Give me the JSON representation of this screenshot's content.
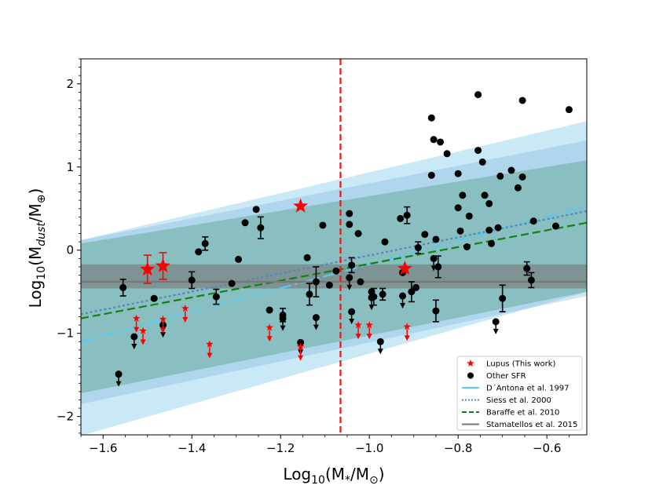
{
  "chart_data": {
    "type": "scatter",
    "xlabel": "Log10(M*/M☉)",
    "ylabel": "Log10(Mdust/M⊕)",
    "xlim": [
      -1.65,
      -0.51
    ],
    "ylim": [
      -2.22,
      2.3
    ],
    "xticks": [
      -1.6,
      -1.4,
      -1.2,
      -1.0,
      -0.8,
      -0.6
    ],
    "xtick_labels": [
      "−1.6",
      "−1.4",
      "−1.2",
      "−1.0",
      "−0.8",
      "−0.6"
    ],
    "yticks": [
      -2,
      -1,
      0,
      1,
      2
    ],
    "ytick_labels": [
      "−2",
      "−1",
      "0",
      "1",
      "2"
    ],
    "vline_x": -1.065,
    "colors": {
      "lupus": "#ff0000",
      "other": "#000000",
      "dantona": "#5bc8f0",
      "siess": "#5b86b8",
      "baraffe": "#128212",
      "stamatellos": "#777777",
      "vline": "#e0201b"
    },
    "bands": [
      {
        "name": "dantona-outer",
        "x": [
          -1.65,
          -0.51
        ],
        "lower": [
          -2.23,
          -0.5
        ],
        "upper": [
          0.12,
          1.55
        ],
        "color": "#87ceeb",
        "opacity": 0.45
      },
      {
        "name": "siess-band",
        "x": [
          -1.65,
          -0.51
        ],
        "lower": [
          -1.85,
          -0.55
        ],
        "upper": [
          0.12,
          1.32
        ],
        "color": "#7fb5dc",
        "opacity": 0.35
      },
      {
        "name": "baraffe-band",
        "x": [
          -1.65,
          -0.51
        ],
        "lower": [
          -1.72,
          -0.5
        ],
        "upper": [
          0.08,
          1.08
        ],
        "color": "#5aa58a",
        "opacity": 0.45
      },
      {
        "name": "stamatellos-band",
        "x": [
          -1.65,
          -0.51
        ],
        "lower": [
          -0.46,
          -0.46
        ],
        "upper": [
          -0.17,
          -0.17
        ],
        "color": "#777777",
        "opacity": 0.6
      }
    ],
    "lines": [
      {
        "name": "dantona-line",
        "x": [
          -1.65,
          -0.51
        ],
        "y": [
          -1.1,
          0.53
        ],
        "color": "#5bc8f0",
        "dash": "16,5,3,5"
      },
      {
        "name": "siess-line",
        "x": [
          -1.65,
          -0.51
        ],
        "y": [
          -0.77,
          0.47
        ],
        "color": "#5b86b8",
        "dash": "3,3"
      },
      {
        "name": "baraffe-line",
        "x": [
          -1.65,
          -0.51
        ],
        "y": [
          -0.82,
          0.33
        ],
        "color": "#128212",
        "dash": "10,5"
      },
      {
        "name": "stamatellos-line",
        "x": [
          -1.65,
          -0.51
        ],
        "y": [
          -0.38,
          -0.38
        ],
        "color": "#777777",
        "dash": ""
      }
    ],
    "lupus_detections": [
      {
        "x": -1.5,
        "y": -0.23,
        "err": 0.17
      },
      {
        "x": -1.465,
        "y": -0.19,
        "err": 0.16
      },
      {
        "x": -1.155,
        "y": 0.53,
        "err": 0.0
      },
      {
        "x": -0.92,
        "y": -0.22,
        "err": 0.0
      }
    ],
    "lupus_upper_limits": [
      {
        "x": -1.525,
        "y": -0.82
      },
      {
        "x": -1.51,
        "y": -0.97
      },
      {
        "x": -1.465,
        "y": -0.83
      },
      {
        "x": -1.415,
        "y": -0.7
      },
      {
        "x": -1.36,
        "y": -1.13
      },
      {
        "x": -1.225,
        "y": -0.93
      },
      {
        "x": -1.155,
        "y": -1.16
      },
      {
        "x": -1.025,
        "y": -0.9
      },
      {
        "x": -1.0,
        "y": -0.9
      },
      {
        "x": -0.915,
        "y": -0.92
      }
    ],
    "other_detections": [
      {
        "x": -1.555,
        "y": -0.45,
        "err": 0.1
      },
      {
        "x": -1.485,
        "y": -0.58,
        "err": 0.0
      },
      {
        "x": -1.4,
        "y": -0.36,
        "err": 0.1
      },
      {
        "x": -1.385,
        "y": -0.02,
        "err": 0.0
      },
      {
        "x": -1.37,
        "y": 0.08,
        "err": 0.08
      },
      {
        "x": -1.345,
        "y": -0.56,
        "err": 0.09
      },
      {
        "x": -1.31,
        "y": -0.4,
        "err": 0.0
      },
      {
        "x": -1.295,
        "y": -0.11,
        "err": 0.0
      },
      {
        "x": -1.28,
        "y": 0.33,
        "err": 0.0
      },
      {
        "x": -1.255,
        "y": 0.49,
        "err": 0.0
      },
      {
        "x": -1.245,
        "y": 0.27,
        "err": 0.13
      },
      {
        "x": -1.225,
        "y": -0.72,
        "err": 0.0
      },
      {
        "x": -1.195,
        "y": -0.78,
        "err": 0.08
      },
      {
        "x": -1.14,
        "y": -0.09,
        "err": 0.0
      },
      {
        "x": -1.135,
        "y": -0.53,
        "err": 0.13
      },
      {
        "x": -1.12,
        "y": -0.38,
        "err": 0.18
      },
      {
        "x": -1.105,
        "y": 0.3,
        "err": 0.0
      },
      {
        "x": -1.09,
        "y": -0.42,
        "err": 0.0
      },
      {
        "x": -1.075,
        "y": -0.25,
        "err": 0.0
      },
      {
        "x": -1.045,
        "y": 0.44,
        "err": 0.0
      },
      {
        "x": -1.045,
        "y": 0.31,
        "err": 0.0
      },
      {
        "x": -1.04,
        "y": -0.18,
        "err": 0.09
      },
      {
        "x": -1.025,
        "y": 0.2,
        "err": 0.0
      },
      {
        "x": -1.02,
        "y": -0.38,
        "err": 0.0
      },
      {
        "x": -0.995,
        "y": -0.5,
        "err": 0.0
      },
      {
        "x": -0.99,
        "y": -0.56,
        "err": 0.1
      },
      {
        "x": -0.97,
        "y": -0.53,
        "err": 0.07
      },
      {
        "x": -0.965,
        "y": 0.1,
        "err": 0.0
      },
      {
        "x": -0.93,
        "y": 0.38,
        "err": 0.0
      },
      {
        "x": -0.925,
        "y": -0.27,
        "err": 0.0
      },
      {
        "x": -0.915,
        "y": 0.42,
        "err": 0.1
      },
      {
        "x": -0.905,
        "y": -0.5,
        "err": 0.12
      },
      {
        "x": -0.895,
        "y": -0.45,
        "err": 0.0
      },
      {
        "x": -0.89,
        "y": 0.03,
        "err": 0.07
      },
      {
        "x": -0.875,
        "y": 0.19,
        "err": 0.0
      },
      {
        "x": -0.86,
        "y": 1.59,
        "err": 0.0
      },
      {
        "x": -0.86,
        "y": 0.9,
        "err": 0.0
      },
      {
        "x": -0.855,
        "y": 1.33,
        "err": 0.0
      },
      {
        "x": -0.85,
        "y": 0.13,
        "err": 0.0
      },
      {
        "x": -0.85,
        "y": -0.73,
        "err": 0.13
      },
      {
        "x": -0.845,
        "y": -0.2,
        "err": 0.13
      },
      {
        "x": -0.84,
        "y": 1.3,
        "err": 0.0
      },
      {
        "x": -0.825,
        "y": 1.16,
        "err": 0.0
      },
      {
        "x": -0.8,
        "y": 0.92,
        "err": 0.0
      },
      {
        "x": -0.8,
        "y": 0.51,
        "err": 0.0
      },
      {
        "x": -0.795,
        "y": 0.23,
        "err": 0.0
      },
      {
        "x": -0.79,
        "y": 0.66,
        "err": 0.0
      },
      {
        "x": -0.78,
        "y": 0.04,
        "err": 0.0
      },
      {
        "x": -0.775,
        "y": 0.41,
        "err": 0.0
      },
      {
        "x": -0.755,
        "y": 1.87,
        "err": 0.0
      },
      {
        "x": -0.755,
        "y": 1.2,
        "err": 0.0
      },
      {
        "x": -0.745,
        "y": 1.06,
        "err": 0.0
      },
      {
        "x": -0.74,
        "y": 0.66,
        "err": 0.0
      },
      {
        "x": -0.73,
        "y": 0.56,
        "err": 0.0
      },
      {
        "x": -0.73,
        "y": 0.24,
        "err": 0.0
      },
      {
        "x": -0.725,
        "y": 0.08,
        "err": 0.0
      },
      {
        "x": -0.71,
        "y": 0.27,
        "err": 0.0
      },
      {
        "x": -0.705,
        "y": 0.89,
        "err": 0.0
      },
      {
        "x": -0.7,
        "y": -0.58,
        "err": 0.16
      },
      {
        "x": -0.68,
        "y": 0.96,
        "err": 0.0
      },
      {
        "x": -0.665,
        "y": 0.75,
        "err": 0.0
      },
      {
        "x": -0.655,
        "y": 1.8,
        "err": 0.0
      },
      {
        "x": -0.655,
        "y": 0.88,
        "err": 0.0
      },
      {
        "x": -0.645,
        "y": -0.22,
        "err": 0.08
      },
      {
        "x": -0.635,
        "y": -0.36,
        "err": 0.09
      },
      {
        "x": -0.63,
        "y": 0.35,
        "err": 0.0
      },
      {
        "x": -0.58,
        "y": 0.29,
        "err": 0.0
      },
      {
        "x": -0.55,
        "y": 1.69,
        "err": 0.0
      }
    ],
    "other_upper_limits": [
      {
        "x": -1.565,
        "y": -1.49
      },
      {
        "x": -1.53,
        "y": -1.04
      },
      {
        "x": -1.465,
        "y": -0.9
      },
      {
        "x": -1.195,
        "y": -0.82
      },
      {
        "x": -1.155,
        "y": -1.11
      },
      {
        "x": -1.12,
        "y": -0.81
      },
      {
        "x": -1.045,
        "y": -0.33
      },
      {
        "x": -1.04,
        "y": -0.74
      },
      {
        "x": -0.995,
        "y": -0.57
      },
      {
        "x": -0.975,
        "y": -1.1
      },
      {
        "x": -0.925,
        "y": -0.55
      },
      {
        "x": -0.715,
        "y": -0.86
      },
      {
        "x": -0.855,
        "y": -0.1
      }
    ],
    "legend": [
      {
        "label": "Lupus (This work)",
        "kind": "star",
        "color": "#ff0000"
      },
      {
        "label": "Other SFR",
        "kind": "dot",
        "color": "#000000"
      },
      {
        "label": "D´Antona et al. 1997",
        "kind": "line",
        "color": "#5bc8f0",
        "dash": ""
      },
      {
        "label": "Siess et al. 2000",
        "kind": "line",
        "color": "#5b86b8",
        "dash": "2,2"
      },
      {
        "label": "Baraffe et al. 2010",
        "kind": "line",
        "color": "#128212",
        "dash": "6,3"
      },
      {
        "label": "Stamatellos et al. 2015",
        "kind": "line",
        "color": "#777777",
        "dash": ""
      }
    ],
    "xlabel_parts": {
      "base": "Log",
      "sub": "10",
      "rest": "(M",
      "sub2": "*",
      "rest2": "/M",
      "sub3": "⊙",
      "end": ")"
    },
    "ylabel_parts": {
      "base": "Log",
      "sub": "10",
      "rest": "(M",
      "sub2": "dust",
      "rest2": "/M",
      "sub3": "⊕",
      "end": ")"
    }
  }
}
